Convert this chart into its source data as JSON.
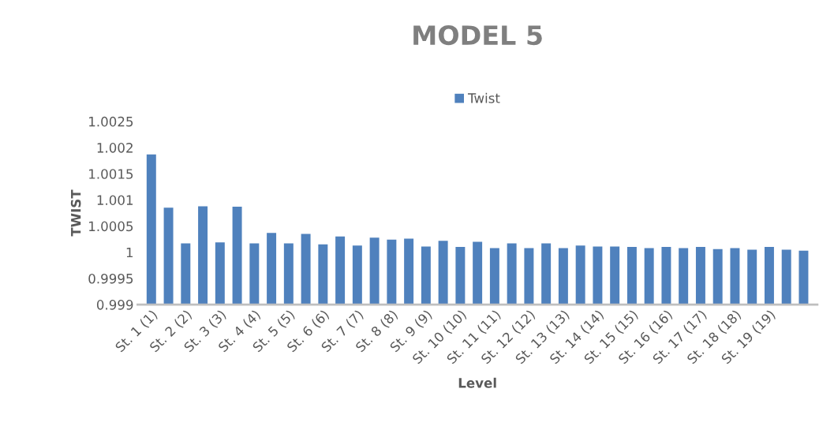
{
  "chart_data": {
    "type": "bar",
    "title": "MODEL 5",
    "xlabel": "Level",
    "ylabel": "TWIST",
    "legend": "top",
    "categories": [
      "St. 1 (1)",
      null,
      "St. 2 (2)",
      null,
      "St. 3 (3)",
      null,
      "St. 4 (4)",
      null,
      "St. 5 (5)",
      null,
      "St. 6 (6)",
      null,
      "St. 7 (7)",
      null,
      "St. 8 (8)",
      null,
      "St. 9 (9)",
      null,
      "St. 10 (10)",
      null,
      "St. 11 (11)",
      null,
      "St. 12 (12)",
      null,
      "St. 13 (13)",
      null,
      "St. 14 (14)",
      null,
      "St. 15 (15)",
      null,
      "St. 16 (16)",
      null,
      "St. 17 (17)",
      null,
      "St. 18 (18)",
      null,
      "St. 19 (19)",
      null,
      null
    ],
    "series": [
      {
        "name": "Twist",
        "color": "#4f81bd",
        "values": [
          1.00187,
          1.00085,
          1.00017,
          1.00088,
          1.00019,
          1.00087,
          1.00017,
          1.00037,
          1.00017,
          1.00035,
          1.00015,
          1.0003,
          1.00013,
          1.00028,
          1.00024,
          1.00026,
          1.00011,
          1.00022,
          1.0001,
          1.0002,
          1.00008,
          1.00017,
          1.00008,
          1.00017,
          1.00008,
          1.00013,
          1.00011,
          1.00011,
          1.0001,
          1.00008,
          1.0001,
          1.00008,
          1.0001,
          1.00006,
          1.00008,
          1.00005,
          1.0001,
          1.00005,
          1.00003
        ]
      }
    ],
    "ylim": [
      0.999,
      1.0025
    ],
    "yticks": [
      0.999,
      0.9995,
      {
        "value": 1,
        "label": "1"
      },
      1.0005,
      1.001,
      1.0015,
      1.002,
      1.0025
    ],
    "grid": false
  }
}
